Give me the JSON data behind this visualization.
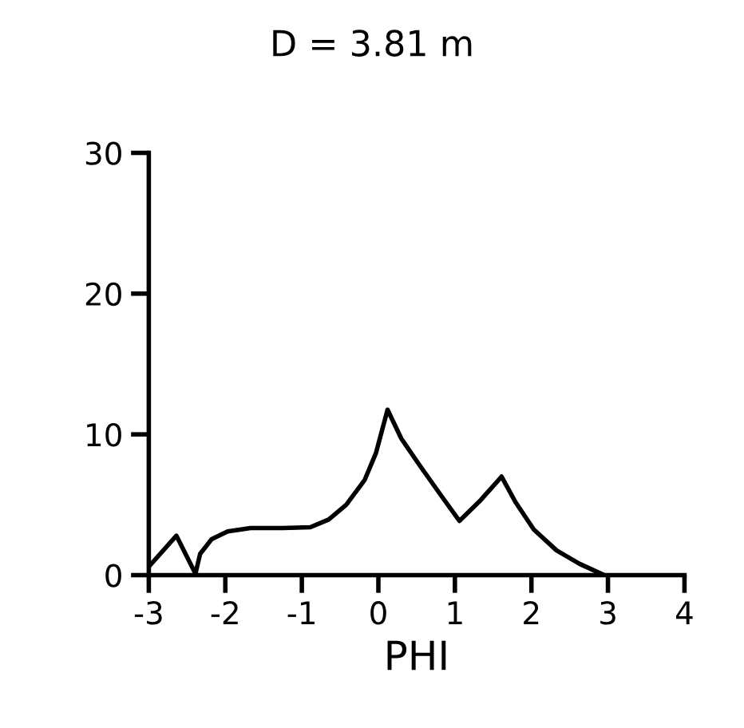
{
  "chart_data": {
    "type": "line",
    "title": "D = 3.81 m",
    "xlabel": "PHI",
    "x": [
      -3,
      -2.64,
      -2.39,
      -2.33,
      -2.18,
      -1.97,
      -1.67,
      -1.25,
      -0.89,
      -0.65,
      -0.42,
      -0.18,
      -0.03,
      0.12,
      0.3,
      0.54,
      0.84,
      1.06,
      1.34,
      1.61,
      1.79,
      2.03,
      2.33,
      2.63,
      2.95
    ],
    "values": [
      0.6,
      2.8,
      0.1,
      1.5,
      2.55,
      3.1,
      3.35,
      3.35,
      3.4,
      3.95,
      5.0,
      6.75,
      8.7,
      11.75,
      9.7,
      7.8,
      5.5,
      3.85,
      5.35,
      7.0,
      5.2,
      3.25,
      1.75,
      0.8,
      0
    ],
    "color": "#000000",
    "xlim": [
      -3,
      4
    ],
    "xticks": [
      -3,
      -2,
      -1,
      0,
      1,
      2,
      3,
      4
    ],
    "ylim": [
      0,
      30
    ],
    "yticks": [
      0,
      10,
      20,
      30
    ],
    "grid": false
  }
}
